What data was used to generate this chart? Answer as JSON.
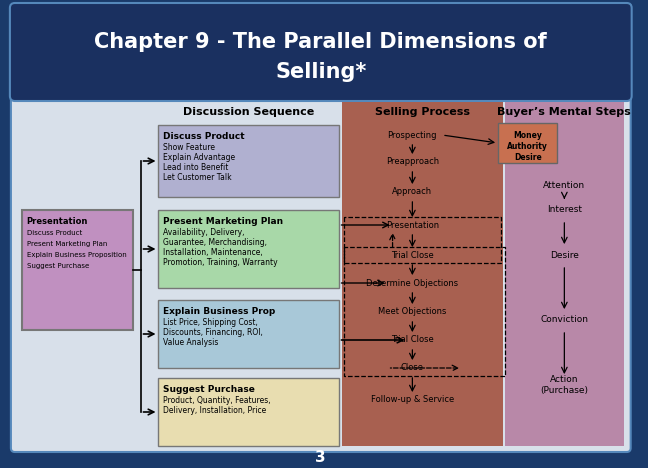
{
  "title_line1": "Chapter 9 - The Parallel Dimensions of",
  "title_line2": "Selling*",
  "bg_color": "#1a3a6a",
  "title_bg": "#1a3060",
  "content_bg": "#d8e0ea",
  "header_discussion": "Discussion Sequence",
  "header_selling": "Selling Process",
  "header_buyer": "Buyer’s Mental Steps",
  "box1_title": "Discuss Product",
  "box1_lines": [
    "Show Feature",
    "Explain Advantage",
    "Lead into Benefit",
    "Let Customer Talk"
  ],
  "box1_color": "#b0b0d0",
  "box2_title": "Present Marketing Plan",
  "box2_lines": [
    "Availability, Delivery,",
    "Guarantee, Merchandising,",
    "Installation, Maintenance,",
    "Promotion, Training, Warranty"
  ],
  "box2_color": "#a8d8a8",
  "box3_title": "Explain Business Prop",
  "box3_lines": [
    "List Price, Shipping Cost,",
    "Discounts, Financing, ROI,",
    "Value Analysis"
  ],
  "box3_color": "#a8c8d8",
  "box4_title": "Suggest Purchase",
  "box4_lines": [
    "Product, Quantity, Features,",
    "Delivery, Installation, Price"
  ],
  "box4_color": "#e8ddb0",
  "pres_title": "Presentation",
  "pres_lines": [
    "Discuss Product",
    "Present Marketing Plan",
    "Explain Business Proposition",
    "Suggest Purchase"
  ],
  "pres_color": "#c090c0",
  "selling_bg": "#a86050",
  "selling_steps": [
    "Prospecting",
    "Preapproach",
    "Approach",
    "Presentation",
    "Trial Close",
    "Determine Objections",
    "Meet Objections",
    "Trial Close",
    "Close",
    "Follow-up & Service"
  ],
  "money_lines": [
    "Money",
    "Authority",
    "Desire"
  ],
  "money_color": "#c87050",
  "buyer_bg": "#b888a8",
  "buyer_steps": [
    "Attention",
    "Interest",
    "Desire",
    "Conviction",
    "Action\n(Purchase)"
  ],
  "footer_num": "3"
}
